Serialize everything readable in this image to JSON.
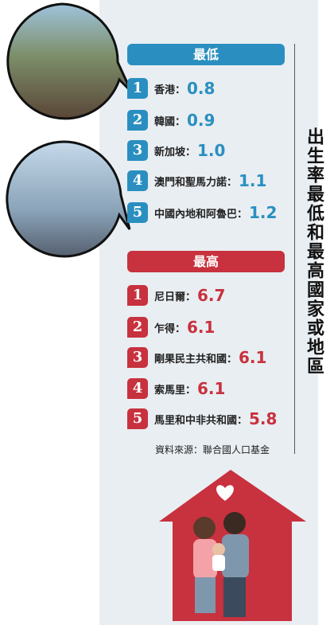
{
  "title": "出生率最低和最高國家或地區",
  "lowest": {
    "heading": "最低",
    "items": [
      {
        "rank": 1,
        "name": "香港：",
        "value": "0.8"
      },
      {
        "rank": 2,
        "name": "韓國：",
        "value": "0.9"
      },
      {
        "rank": 3,
        "name": "新加坡：",
        "value": "1.0"
      },
      {
        "rank": 4,
        "name": "澳門和聖馬力諾：",
        "value": "1.1"
      },
      {
        "rank": 5,
        "name": "中國內地和阿魯巴：",
        "value": "1.2"
      }
    ]
  },
  "highest": {
    "heading": "最高",
    "items": [
      {
        "rank": 1,
        "name": "尼日爾：",
        "value": "6.7"
      },
      {
        "rank": 2,
        "name": "乍得：",
        "value": "6.1"
      },
      {
        "rank": 3,
        "name": "剛果民主共和國：",
        "value": "6.1"
      },
      {
        "rank": 4,
        "name": "索馬里：",
        "value": "6.1"
      },
      {
        "rank": 5,
        "name": "馬里和中非共和國：",
        "value": "5.8"
      }
    ]
  },
  "source": "資料來源：聯合國人口基金"
}
